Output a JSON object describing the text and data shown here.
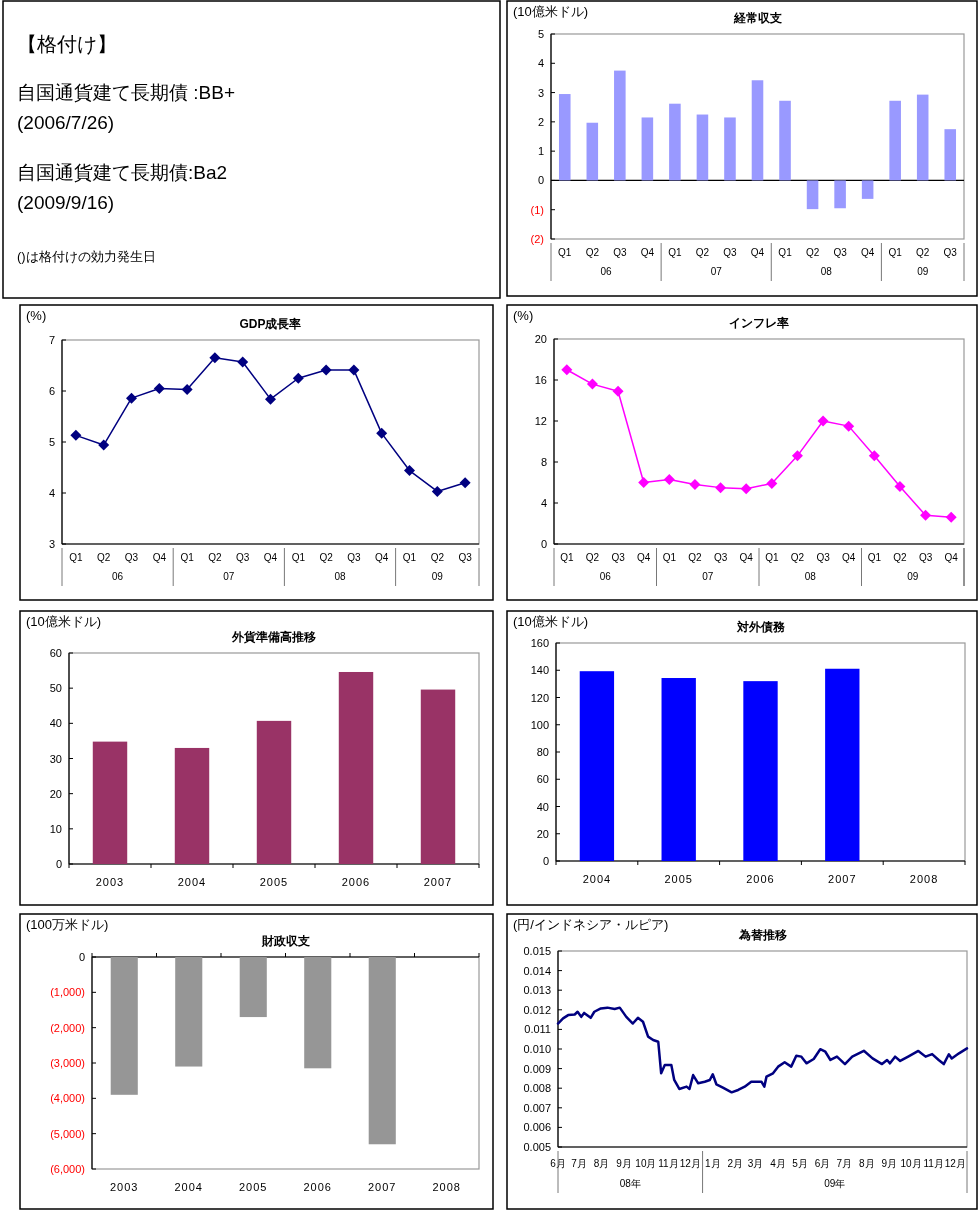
{
  "chart_data": [
    {
      "type": "other",
      "title": "【格付け】",
      "annotations": [
        "自国通貨建て長期債 :BB+",
        "(2006/7/26)",
        "自国通貨建て長期債:Ba2",
        "(2009/9/16)",
        "()は格付けの効力発生日"
      ]
    },
    {
      "type": "bar",
      "title": "経常収支",
      "ylabel": "(10億米ドル)",
      "categories": [
        "Q1",
        "Q2",
        "Q3",
        "Q4",
        "Q1",
        "Q2",
        "Q3",
        "Q4",
        "Q1",
        "Q2",
        "Q3",
        "Q4",
        "Q1",
        "Q2",
        "Q3"
      ],
      "values": [
        2.95,
        1.97,
        3.75,
        2.15,
        2.62,
        2.25,
        2.15,
        3.42,
        2.72,
        -0.98,
        -0.95,
        -0.63,
        2.72,
        2.93,
        1.75
      ],
      "color": "#9999ff",
      "ylim": [
        -2,
        5
      ],
      "yticks": [
        5,
        4,
        3,
        2,
        1,
        0,
        {
          "value": -1,
          "label": "(1)"
        },
        {
          "value": -2,
          "label": "(2)"
        }
      ],
      "annotations": [
        "06",
        "07",
        "08",
        "09"
      ]
    },
    {
      "type": "line",
      "title": "GDP成長率",
      "ylabel": "(%)",
      "categories": [
        "Q1",
        "Q2",
        "Q3",
        "Q4",
        "Q1",
        "Q2",
        "Q3",
        "Q4",
        "Q1",
        "Q2",
        "Q3",
        "Q4",
        "Q1",
        "Q2",
        "Q3"
      ],
      "values": [
        5.13,
        4.94,
        5.86,
        6.05,
        6.03,
        6.65,
        6.57,
        5.84,
        6.25,
        6.41,
        6.41,
        5.17,
        4.44,
        4.03,
        4.2
      ],
      "color": "#000080",
      "marker": "diamond",
      "ylim": [
        3,
        7
      ],
      "yticks": [
        3,
        4,
        5,
        6,
        7
      ],
      "annotations": [
        "06",
        "07",
        "08",
        "09"
      ]
    },
    {
      "type": "line",
      "title": "インフレ率",
      "ylabel": "(%)",
      "categories": [
        "Q1",
        "Q2",
        "Q3",
        "Q4",
        "Q1",
        "Q2",
        "Q3",
        "Q4",
        "Q1",
        "Q2",
        "Q3",
        "Q4",
        "Q1",
        "Q2",
        "Q3",
        "Q4"
      ],
      "values": [
        17.0,
        15.6,
        14.9,
        6.0,
        6.3,
        5.8,
        5.5,
        5.4,
        5.9,
        8.6,
        12.0,
        11.5,
        8.6,
        5.6,
        2.8,
        2.6
      ],
      "color": "#ff00ff",
      "marker": "diamond",
      "ylim": [
        0,
        20
      ],
      "yticks": [
        0,
        4,
        8,
        12,
        16,
        20
      ],
      "annotations": [
        "06",
        "07",
        "08",
        "09"
      ]
    },
    {
      "type": "bar",
      "title": "外貨準備高推移",
      "ylabel": "(10億米ドル)",
      "categories": [
        "2003",
        "2004",
        "2005",
        "2006",
        "2007"
      ],
      "values": [
        34.8,
        33.0,
        40.7,
        54.6,
        49.6
      ],
      "color": "#993366",
      "ylim": [
        0,
        60
      ],
      "yticks": [
        0,
        10,
        20,
        30,
        40,
        50,
        60
      ]
    },
    {
      "type": "bar",
      "title": "対外債務",
      "ylabel": "(10億米ドル)",
      "categories": [
        "2004",
        "2005",
        "2006",
        "2007",
        "2008"
      ],
      "values": [
        139.3,
        134.3,
        132.0,
        141.1,
        null
      ],
      "color": "#0000ff",
      "ylim": [
        0,
        160
      ],
      "yticks": [
        0,
        20,
        40,
        60,
        80,
        100,
        120,
        140,
        160
      ]
    },
    {
      "type": "bar",
      "title": "財政収支",
      "ylabel": "(100万米ドル)",
      "categories": [
        "2003",
        "2004",
        "2005",
        "2006",
        "2007",
        "2008"
      ],
      "values": [
        -3900,
        -3100,
        -1700,
        -3150,
        -5300,
        null
      ],
      "color": "#969696",
      "ylim": [
        -6000,
        0
      ],
      "yticks": [
        0,
        {
          "value": -1000,
          "label": "(1,000)"
        },
        {
          "value": -2000,
          "label": "(2,000)"
        },
        {
          "value": -3000,
          "label": "(3,000)"
        },
        {
          "value": -4000,
          "label": "(4,000)"
        },
        {
          "value": -5000,
          "label": "(5,000)"
        },
        {
          "value": -6000,
          "label": "(6,000)"
        }
      ]
    },
    {
      "type": "line",
      "title": "為替推移",
      "ylabel": "(円/インドネシア・ルピア)",
      "color": "#000080",
      "marker": "none",
      "x": [
        "2008-06-16",
        "2008-06-23",
        "2008-06-30",
        "2008-07-09",
        "2008-07-13",
        "2008-07-18",
        "2008-07-22",
        "2008-07-31",
        "2008-08-05",
        "2008-08-14",
        "2008-08-23",
        "2008-09-02",
        "2008-09-09",
        "2008-09-18",
        "2008-09-27",
        "2008-10-04",
        "2008-10-11",
        "2008-10-18",
        "2008-10-25",
        "2008-11-01",
        "2008-11-05",
        "2008-11-10",
        "2008-11-19",
        "2008-11-23",
        "2008-11-30",
        "2008-12-10",
        "2008-12-14",
        "2008-12-19",
        "2008-12-26",
        "2009-01-04",
        "2009-01-11",
        "2009-01-15",
        "2009-01-20",
        "2009-01-29",
        "2009-02-10",
        "2009-02-19",
        "2009-02-28",
        "2009-03-09",
        "2009-03-23",
        "2009-03-27",
        "2009-03-30",
        "2009-04-08",
        "2009-04-15",
        "2009-04-24",
        "2009-05-03",
        "2009-05-10",
        "2009-05-17",
        "2009-05-24",
        "2009-06-03",
        "2009-06-12",
        "2009-06-19",
        "2009-06-26",
        "2009-07-05",
        "2009-07-16",
        "2009-07-26",
        "2009-08-04",
        "2009-08-11",
        "2009-08-23",
        "2009-09-05",
        "2009-09-12",
        "2009-09-16",
        "2009-09-23",
        "2009-09-30",
        "2009-10-11",
        "2009-10-25",
        "2009-11-04",
        "2009-11-13",
        "2009-11-22",
        "2009-11-29",
        "2009-12-06",
        "2009-12-10",
        "2009-12-20",
        "2009-12-31"
      ],
      "values": [
        0.0113,
        0.01156,
        0.01173,
        0.01176,
        0.0119,
        0.01164,
        0.01184,
        0.01159,
        0.0119,
        0.01207,
        0.01211,
        0.01204,
        0.01211,
        0.01164,
        0.0113,
        0.01159,
        0.01139,
        0.01063,
        0.01046,
        0.01037,
        0.00876,
        0.00918,
        0.00918,
        0.00842,
        0.00796,
        0.00808,
        0.00796,
        0.00867,
        0.00825,
        0.00833,
        0.00842,
        0.00871,
        0.0082,
        0.00803,
        0.00779,
        0.00791,
        0.00808,
        0.00833,
        0.00833,
        0.00808,
        0.00859,
        0.00876,
        0.0091,
        0.00932,
        0.0091,
        0.00966,
        0.00961,
        0.00927,
        0.00949,
        0.00999,
        0.00986,
        0.00944,
        0.00961,
        0.00923,
        0.00961,
        0.00978,
        0.00991,
        0.00952,
        0.00923,
        0.00944,
        0.00927,
        0.00961,
        0.00939,
        0.00961,
        0.0099,
        0.00961,
        0.00974,
        0.00944,
        0.00923,
        0.00973,
        0.00952,
        0.00978,
        0.01003
      ],
      "xlim": [
        "2008-06-16",
        "2009-12-31"
      ],
      "xticks": [
        {
          "value": "2008-06-16",
          "label": "6月"
        },
        {
          "value": "2008-07-15",
          "label": "7月"
        },
        {
          "value": "2008-08-15",
          "label": "8月"
        },
        {
          "value": "2008-09-15",
          "label": "9月"
        },
        {
          "value": "2008-10-15",
          "label": "10月"
        },
        {
          "value": "2008-11-15",
          "label": "11月"
        },
        {
          "value": "2008-12-15",
          "label": "12月"
        },
        {
          "value": "2009-01-15",
          "label": "1月"
        },
        {
          "value": "2009-02-15",
          "label": "2月"
        },
        {
          "value": "2009-03-15",
          "label": "3月"
        },
        {
          "value": "2009-04-15",
          "label": "4月"
        },
        {
          "value": "2009-05-15",
          "label": "5月"
        },
        {
          "value": "2009-06-15",
          "label": "6月"
        },
        {
          "value": "2009-07-15",
          "label": "7月"
        },
        {
          "value": "2009-08-15",
          "label": "8月"
        },
        {
          "value": "2009-09-15",
          "label": "9月"
        },
        {
          "value": "2009-10-15",
          "label": "10月"
        },
        {
          "value": "2009-11-15",
          "label": "11月"
        },
        {
          "value": "2009-12-15",
          "label": "12月"
        }
      ],
      "ylim": [
        0.005,
        0.015
      ],
      "yticks": [
        0.005,
        0.006,
        0.007,
        0.008,
        0.009,
        {
          "value": 0.01,
          "label": "0.010"
        },
        0.011,
        0.012,
        0.013,
        0.014,
        0.015
      ],
      "annotations": [
        "08年",
        "09年"
      ]
    }
  ]
}
